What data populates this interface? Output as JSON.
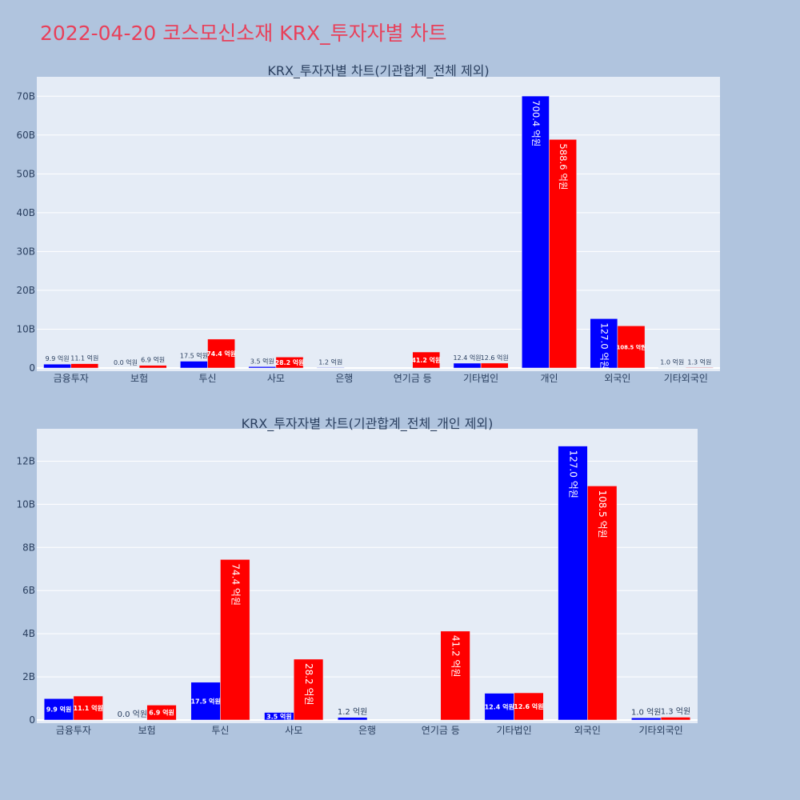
{
  "page": {
    "title": "2022-04-20 코스모신소재 KRX_투자자별 차트",
    "background": "#b0c4de",
    "title_color": "#e8405a"
  },
  "colors": {
    "plot_bg": "#e5ecf6",
    "grid": "#ffffff",
    "series_blue": "#0000ff",
    "series_red": "#ff0000",
    "text": "#2a3f5f"
  },
  "chart_data": [
    {
      "type": "bar",
      "title": "KRX_투자자별 차트(기관합계_전체 제외)",
      "xlabel": "",
      "ylabel": "",
      "categories": [
        "금융투자",
        "보험",
        "투신",
        "사모",
        "은행",
        "연기금 등",
        "기타법인",
        "개인",
        "외국인",
        "기타외국인"
      ],
      "ylim": [
        0,
        75
      ],
      "yticks": [
        0,
        10,
        20,
        30,
        40,
        50,
        60,
        70
      ],
      "ytick_labels": [
        "0",
        "10B",
        "20B",
        "30B",
        "40B",
        "50B",
        "60B",
        "70B"
      ],
      "grid": true,
      "legend": "none",
      "series": [
        {
          "color": "#0000ff",
          "values": [
            0.99,
            0.0,
            1.75,
            0.35,
            0.12,
            null,
            1.24,
            70.04,
            12.7,
            0.1
          ],
          "labels": [
            "9.9 억원",
            "0.0 억원",
            "17.5 억원",
            "3.5 억원",
            "1.2 억원",
            "",
            "12.4 억원",
            "700.4 억원",
            "127.0 억원",
            "1.0 억원"
          ]
        },
        {
          "color": "#ff0000",
          "values": [
            1.11,
            0.69,
            7.44,
            2.82,
            null,
            4.12,
            1.26,
            58.86,
            10.85,
            0.13
          ],
          "labels": [
            "11.1 억원",
            "6.9 억원",
            "74.4 억원",
            "28.2 억원",
            "",
            "41.2 억원",
            "12.6 억원",
            "588.6 억원",
            "108.5 억원",
            "1.3 억원"
          ]
        }
      ]
    },
    {
      "type": "bar",
      "title": "KRX_투자자별 차트(기관합계_전체_개인 제외)",
      "xlabel": "",
      "ylabel": "",
      "categories": [
        "금융투자",
        "보험",
        "투신",
        "사모",
        "은행",
        "연기금 등",
        "기타법인",
        "외국인",
        "기타외국인"
      ],
      "ylim": [
        0,
        13.5
      ],
      "yticks": [
        0,
        2,
        4,
        6,
        8,
        10,
        12
      ],
      "ytick_labels": [
        "0",
        "2B",
        "4B",
        "6B",
        "8B",
        "10B",
        "12B"
      ],
      "grid": true,
      "legend": "none",
      "series": [
        {
          "color": "#0000ff",
          "values": [
            0.99,
            0.0,
            1.75,
            0.35,
            0.12,
            null,
            1.24,
            12.7,
            0.1
          ],
          "labels": [
            "9.9 억원",
            "0.0 억원",
            "17.5 억원",
            "3.5 억원",
            "1.2 억원",
            "",
            "12.4 억원",
            "127.0 억원",
            "1.0 억원"
          ]
        },
        {
          "color": "#ff0000",
          "values": [
            1.11,
            0.69,
            7.44,
            2.82,
            null,
            4.12,
            1.26,
            10.85,
            0.13
          ],
          "labels": [
            "11.1 억원",
            "6.9 억원",
            "74.4 억원",
            "28.2 억원",
            "",
            "41.2 억원",
            "12.6 억원",
            "108.5 억원",
            "1.3 억원"
          ]
        }
      ]
    }
  ]
}
